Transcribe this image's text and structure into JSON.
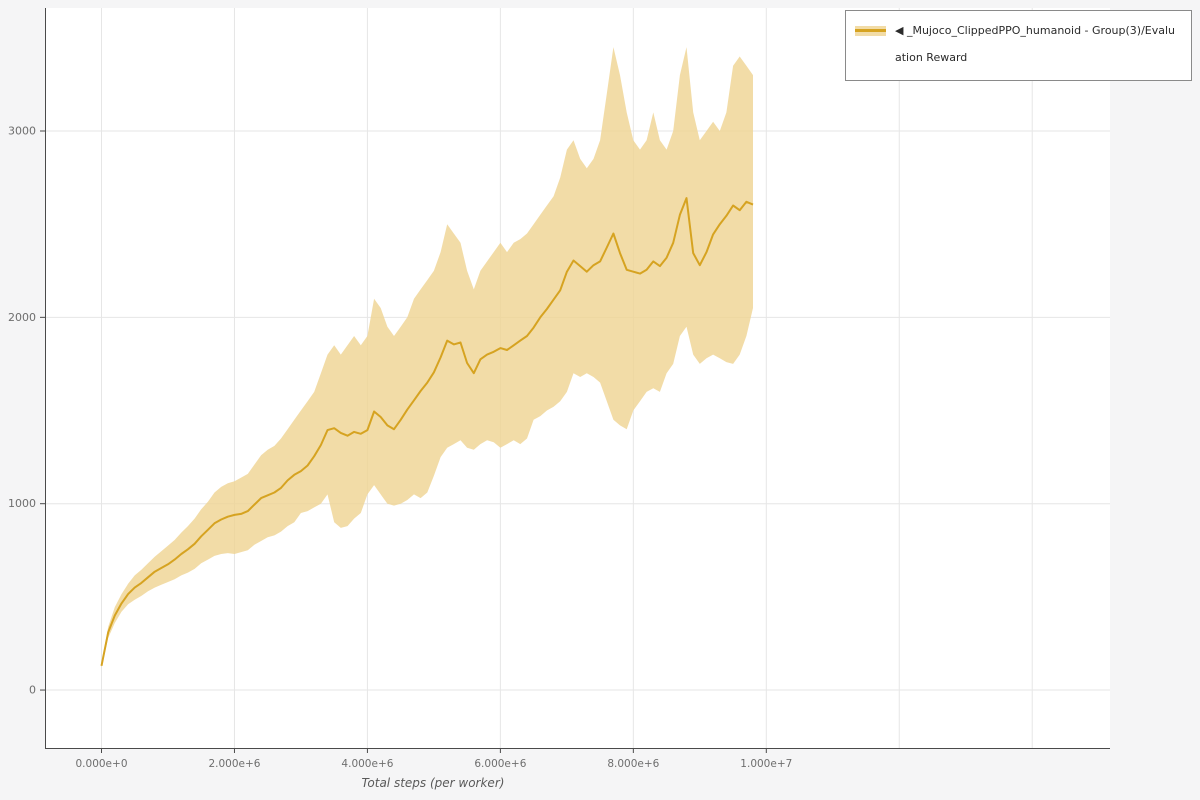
{
  "page": {
    "background": "#f5f5f6"
  },
  "legend": {
    "label": "◀ _Mujoco_ClippedPPO_humanoid - Group(3)/Evaluation Reward"
  },
  "chart_data": {
    "type": "line",
    "title": "",
    "xlabel": "Total steps (per worker)",
    "ylabel": "",
    "x_scale": 1000000,
    "x_unit": "steps (x values are in millions)",
    "xlim": [
      -0.85,
      15.17
    ],
    "ylim": [
      -311,
      3660
    ],
    "x_grid": [
      0,
      2,
      4,
      6,
      8,
      10,
      12,
      14
    ],
    "y_grid": [
      0,
      1000,
      2000,
      3000
    ],
    "x_ticks": [
      {
        "value": 0,
        "label": "0.000e+0"
      },
      {
        "value": 2,
        "label": "2.000e+6"
      },
      {
        "value": 4,
        "label": "4.000e+6"
      },
      {
        "value": 6,
        "label": "6.000e+6"
      },
      {
        "value": 8,
        "label": "8.000e+6"
      },
      {
        "value": 10,
        "label": "1.000e+7"
      }
    ],
    "y_ticks": [
      {
        "value": 0,
        "label": "0"
      },
      {
        "value": 1000,
        "label": "1000"
      },
      {
        "value": 2000,
        "label": "2000"
      },
      {
        "value": 3000,
        "label": "3000"
      }
    ],
    "plot_bg": "#ffffff",
    "grid_color": "#e6e6e6",
    "axis_color": "#4a4a4a",
    "tick_label_color": "#6e6e6e",
    "legend_position": "top-right",
    "series": [
      {
        "name": "_Mujoco_ClippedPPO_humanoid - Group(3)/Evaluation Reward",
        "line_color": "#d6a321",
        "band_color": "#efd391",
        "x": [
          0,
          0.1,
          0.2,
          0.3,
          0.4,
          0.5,
          0.6,
          0.7,
          0.8,
          0.9,
          1,
          1.1,
          1.2,
          1.3,
          1.4,
          1.5,
          1.6,
          1.7,
          1.8,
          1.9,
          2,
          2.1,
          2.2,
          2.3,
          2.4,
          2.5,
          2.6,
          2.7,
          2.8,
          2.9,
          3,
          3.1,
          3.2,
          3.3,
          3.4,
          3.5,
          3.6,
          3.7,
          3.8,
          3.9,
          4,
          4.1,
          4.2,
          4.3,
          4.4,
          4.5,
          4.6,
          4.7,
          4.8,
          4.9,
          5,
          5.1,
          5.2,
          5.3,
          5.4,
          5.5,
          5.6,
          5.7,
          5.8,
          5.9,
          6,
          6.1,
          6.2,
          6.3,
          6.4,
          6.5,
          6.6,
          6.7,
          6.8,
          6.9,
          7,
          7.1,
          7.2,
          7.3,
          7.4,
          7.5,
          7.6,
          7.7,
          7.8,
          7.9,
          8,
          8.1,
          8.2,
          8.3,
          8.4,
          8.5,
          8.6,
          8.7,
          8.8,
          8.9,
          9,
          9.1,
          9.2,
          9.3,
          9.4,
          9.5,
          9.6,
          9.7,
          9.8
        ],
        "mean": [
          130,
          310,
          400,
          465,
          515,
          550,
          575,
          605,
          635,
          655,
          675,
          700,
          730,
          755,
          785,
          825,
          860,
          895,
          915,
          930,
          940,
          945,
          960,
          995,
          1030,
          1045,
          1060,
          1085,
          1125,
          1155,
          1175,
          1205,
          1255,
          1315,
          1395,
          1405,
          1380,
          1365,
          1385,
          1375,
          1395,
          1495,
          1465,
          1420,
          1400,
          1450,
          1505,
          1555,
          1605,
          1650,
          1705,
          1785,
          1875,
          1855,
          1865,
          1755,
          1700,
          1775,
          1800,
          1815,
          1835,
          1825,
          1850,
          1875,
          1900,
          1945,
          2000,
          2045,
          2095,
          2145,
          2245,
          2305,
          2275,
          2245,
          2280,
          2300,
          2375,
          2450,
          2345,
          2255,
          2245,
          2235,
          2255,
          2300,
          2275,
          2320,
          2400,
          2550,
          2640,
          2345,
          2280,
          2350,
          2445,
          2500,
          2545,
          2600,
          2575,
          2620,
          2605
        ],
        "lower": [
          120,
          280,
          360,
          420,
          460,
          485,
          505,
          530,
          550,
          565,
          580,
          595,
          615,
          630,
          650,
          680,
          700,
          720,
          730,
          735,
          730,
          740,
          750,
          780,
          800,
          820,
          830,
          850,
          880,
          900,
          950,
          960,
          980,
          1000,
          1050,
          900,
          870,
          880,
          920,
          950,
          1050,
          1100,
          1050,
          1000,
          990,
          1000,
          1020,
          1050,
          1030,
          1060,
          1150,
          1250,
          1300,
          1320,
          1340,
          1300,
          1290,
          1320,
          1340,
          1330,
          1300,
          1320,
          1340,
          1320,
          1350,
          1450,
          1470,
          1500,
          1520,
          1550,
          1600,
          1700,
          1680,
          1700,
          1680,
          1650,
          1550,
          1450,
          1420,
          1400,
          1500,
          1550,
          1600,
          1620,
          1600,
          1700,
          1750,
          1900,
          1950,
          1800,
          1750,
          1780,
          1800,
          1780,
          1760,
          1750,
          1800,
          1900,
          2050
        ],
        "upper": [
          140,
          340,
          445,
          515,
          570,
          615,
          645,
          680,
          715,
          745,
          775,
          805,
          845,
          880,
          920,
          970,
          1010,
          1060,
          1090,
          1110,
          1120,
          1140,
          1160,
          1210,
          1260,
          1290,
          1310,
          1350,
          1400,
          1450,
          1500,
          1550,
          1600,
          1700,
          1800,
          1850,
          1800,
          1850,
          1900,
          1850,
          1900,
          2100,
          2050,
          1950,
          1900,
          1950,
          2000,
          2100,
          2150,
          2200,
          2250,
          2350,
          2500,
          2450,
          2400,
          2250,
          2150,
          2250,
          2300,
          2350,
          2400,
          2350,
          2400,
          2420,
          2450,
          2500,
          2550,
          2600,
          2650,
          2750,
          2900,
          2950,
          2850,
          2800,
          2850,
          2950,
          3200,
          3450,
          3300,
          3100,
          2950,
          2900,
          2950,
          3100,
          2950,
          2900,
          3000,
          3300,
          3450,
          3100,
          2950,
          3000,
          3050,
          3000,
          3100,
          3350,
          3400,
          3350,
          3300
        ]
      }
    ]
  }
}
